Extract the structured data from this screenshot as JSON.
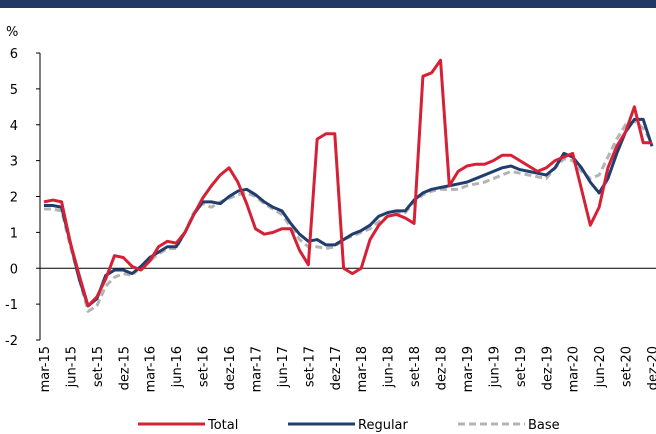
{
  "chart_data": {
    "type": "line",
    "y_label": "%",
    "categories": [
      "mar-15",
      null,
      null,
      "jun-15",
      null,
      null,
      "set-15",
      null,
      null,
      "dez-15",
      null,
      null,
      "mar-16",
      null,
      null,
      "jun-16",
      null,
      null,
      "set-16",
      null,
      null,
      "dez-16",
      null,
      null,
      "mar-17",
      null,
      null,
      "jun-17",
      null,
      null,
      "set-17",
      null,
      null,
      "dez-17",
      null,
      null,
      "mar-18",
      null,
      null,
      "jun-18",
      null,
      null,
      "set-18",
      null,
      null,
      "dez-18",
      null,
      null,
      "mar-19",
      null,
      null,
      "jun-19",
      null,
      null,
      "set-19",
      null,
      null,
      "dez-19",
      null,
      null,
      "mar-20",
      null,
      null,
      "jun-20",
      null,
      null,
      "set-20",
      null,
      null,
      "dez-20"
    ],
    "series": [
      {
        "name": "Total",
        "color": "#d62035",
        "dash": false,
        "values": [
          1.85,
          1.9,
          1.85,
          0.7,
          -0.2,
          -1.05,
          -0.8,
          -0.3,
          0.35,
          0.3,
          0.05,
          -0.05,
          0.2,
          0.6,
          0.75,
          0.7,
          1.0,
          1.5,
          1.95,
          2.3,
          2.6,
          2.8,
          2.4,
          1.8,
          1.1,
          0.95,
          1.0,
          1.1,
          1.1,
          0.5,
          0.1,
          3.6,
          3.75,
          3.75,
          0.0,
          -0.15,
          0.0,
          0.8,
          1.2,
          1.45,
          1.5,
          1.4,
          1.25,
          5.35,
          5.45,
          5.8,
          2.3,
          2.7,
          2.85,
          2.9,
          2.9,
          3.0,
          3.15,
          3.15,
          3.0,
          2.85,
          2.7,
          2.8,
          3.0,
          3.1,
          3.2,
          2.2,
          1.2,
          1.7,
          2.8,
          3.4,
          3.8,
          4.5,
          3.5,
          3.5
        ]
      },
      {
        "name": "Regular",
        "color": "#1f3e6e",
        "dash": false,
        "values": [
          1.75,
          1.75,
          1.7,
          0.7,
          -0.3,
          -1.05,
          -0.85,
          -0.2,
          -0.05,
          -0.05,
          -0.15,
          0.05,
          0.3,
          0.45,
          0.6,
          0.6,
          1.0,
          1.5,
          1.85,
          1.85,
          1.8,
          2.0,
          2.15,
          2.2,
          2.05,
          1.85,
          1.7,
          1.6,
          1.25,
          0.95,
          0.75,
          0.8,
          0.65,
          0.65,
          0.8,
          0.95,
          1.05,
          1.2,
          1.45,
          1.55,
          1.6,
          1.6,
          1.9,
          2.1,
          2.2,
          2.25,
          2.3,
          2.35,
          2.4,
          2.5,
          2.6,
          2.7,
          2.8,
          2.85,
          2.75,
          2.7,
          2.65,
          2.6,
          2.8,
          3.2,
          3.1,
          2.8,
          2.4,
          2.1,
          2.5,
          3.2,
          3.8,
          4.15,
          4.15,
          3.4
        ]
      },
      {
        "name": "Base",
        "color": "#b4b4b4",
        "dash": true,
        "values": [
          1.65,
          1.65,
          1.6,
          0.6,
          -0.3,
          -1.2,
          -1.05,
          -0.5,
          -0.25,
          -0.15,
          -0.2,
          0.05,
          0.2,
          0.4,
          0.55,
          0.55,
          1.0,
          1.55,
          1.8,
          1.7,
          1.85,
          1.95,
          2.05,
          2.1,
          2.0,
          1.8,
          1.65,
          1.5,
          1.15,
          0.8,
          0.6,
          0.6,
          0.55,
          0.6,
          0.8,
          0.9,
          1.0,
          1.1,
          1.3,
          1.45,
          1.55,
          1.55,
          1.85,
          2.05,
          2.15,
          2.2,
          2.2,
          2.2,
          2.3,
          2.35,
          2.4,
          2.5,
          2.6,
          2.7,
          2.65,
          2.6,
          2.55,
          2.5,
          2.8,
          3.05,
          3.0,
          2.7,
          2.5,
          2.6,
          3.1,
          3.6,
          4.0,
          4.1,
          3.9,
          3.5
        ]
      }
    ],
    "ylim": [
      -2,
      6
    ],
    "yticks": [
      -2,
      -1,
      0,
      1,
      2,
      3,
      4,
      5,
      6
    ]
  }
}
